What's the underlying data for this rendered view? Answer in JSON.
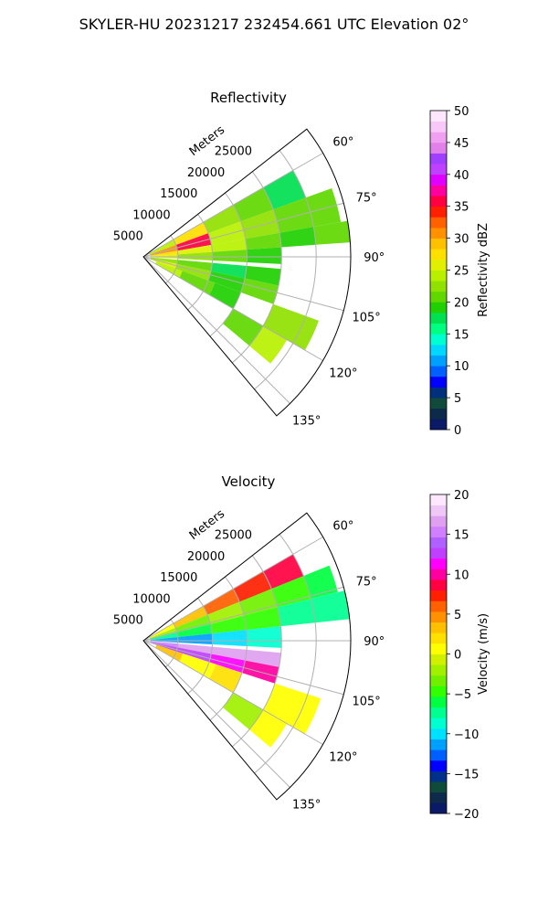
{
  "figure": {
    "title": "SKYLER-HU  20231217  232454.661 UTC Elevation 02°"
  },
  "chart_data": [
    {
      "type": "heatmap",
      "subtype": "polar-sector (radar PPI)",
      "title": "Reflectivity",
      "range_label": "Meters",
      "r_ticks": [
        5000,
        10000,
        15000,
        20000,
        25000
      ],
      "r_tick_labels": [
        "5000",
        "10000",
        "15000",
        "20000",
        "25000"
      ],
      "rlim": [
        0,
        30000
      ],
      "theta_ticks_deg": [
        60,
        75,
        90,
        105,
        120,
        135
      ],
      "theta_tick_labels": [
        "60°",
        "75°",
        "90°",
        "105°",
        "120°",
        "135°"
      ],
      "theta_range_deg": [
        52,
        140
      ],
      "grid": true,
      "colorbar": {
        "label": "Reflectivity dBZ",
        "range": [
          0,
          50
        ],
        "ticks": [
          0,
          5,
          10,
          15,
          20,
          25,
          30,
          35,
          40,
          45,
          50
        ],
        "tick_labels": [
          "0",
          "5",
          "10",
          "15",
          "20",
          "25",
          "30",
          "35",
          "40",
          "45",
          "50"
        ]
      },
      "cells": [
        {
          "az": [
            60,
            70
          ],
          "r": [
            1000,
            5000
          ],
          "v": 24
        },
        {
          "az": [
            60,
            70
          ],
          "r": [
            5000,
            10000
          ],
          "v": 28
        },
        {
          "az": [
            60,
            70
          ],
          "r": [
            10000,
            15000
          ],
          "v": 22
        },
        {
          "az": [
            60,
            70
          ],
          "r": [
            15000,
            20000
          ],
          "v": 20
        },
        {
          "az": [
            60,
            70
          ],
          "r": [
            20000,
            25000
          ],
          "v": 18
        },
        {
          "az": [
            70,
            80
          ],
          "r": [
            1000,
            5000
          ],
          "v": 30
        },
        {
          "az": [
            70,
            80
          ],
          "r": [
            5000,
            10000
          ],
          "v": 35
        },
        {
          "az": [
            70,
            80
          ],
          "r": [
            10000,
            15000
          ],
          "v": 24
        },
        {
          "az": [
            70,
            80
          ],
          "r": [
            15000,
            20000
          ],
          "v": 22
        },
        {
          "az": [
            70,
            80
          ],
          "r": [
            20000,
            25000
          ],
          "v": 21
        },
        {
          "az": [
            70,
            80
          ],
          "r": [
            25000,
            29000
          ],
          "v": 20
        },
        {
          "az": [
            80,
            86
          ],
          "r": [
            1000,
            5000
          ],
          "v": 28
        },
        {
          "az": [
            80,
            86
          ],
          "r": [
            5000,
            10000
          ],
          "v": 26
        },
        {
          "az": [
            80,
            86
          ],
          "r": [
            10000,
            15000
          ],
          "v": 24
        },
        {
          "az": [
            80,
            86
          ],
          "r": [
            15000,
            20000
          ],
          "v": 21
        },
        {
          "az": [
            80,
            86
          ],
          "r": [
            20000,
            25000
          ],
          "v": 19
        },
        {
          "az": [
            80,
            86
          ],
          "r": [
            25000,
            30000
          ],
          "v": 20
        },
        {
          "az": [
            86,
            93
          ],
          "r": [
            1000,
            5000
          ],
          "v": 25
        },
        {
          "az": [
            86,
            93
          ],
          "r": [
            5000,
            10000
          ],
          "v": 22
        },
        {
          "az": [
            86,
            93
          ],
          "r": [
            10000,
            15000
          ],
          "v": 20
        },
        {
          "az": [
            86,
            93
          ],
          "r": [
            15000,
            20000
          ],
          "v": 19
        },
        {
          "az": [
            95,
            102
          ],
          "r": [
            1000,
            5000
          ],
          "v": 23
        },
        {
          "az": [
            95,
            102
          ],
          "r": [
            5000,
            10000
          ],
          "v": 20
        },
        {
          "az": [
            95,
            102
          ],
          "r": [
            10000,
            15000
          ],
          "v": 18
        },
        {
          "az": [
            95,
            102
          ],
          "r": [
            15000,
            20000
          ],
          "v": 19
        },
        {
          "az": [
            102,
            110
          ],
          "r": [
            1000,
            5000
          ],
          "v": 26
        },
        {
          "az": [
            102,
            110
          ],
          "r": [
            5000,
            10000
          ],
          "v": 22
        },
        {
          "az": [
            102,
            110
          ],
          "r": [
            10000,
            15000
          ],
          "v": 19
        },
        {
          "az": [
            102,
            110
          ],
          "r": [
            15000,
            20000
          ],
          "v": 21
        },
        {
          "az": [
            110,
            120
          ],
          "r": [
            2000,
            6000
          ],
          "v": 24
        },
        {
          "az": [
            110,
            120
          ],
          "r": [
            6000,
            11000
          ],
          "v": 20
        },
        {
          "az": [
            110,
            120
          ],
          "r": [
            11000,
            15000
          ],
          "v": 19
        },
        {
          "az": [
            110,
            120
          ],
          "r": [
            20000,
            27000
          ],
          "v": 22
        },
        {
          "az": [
            120,
            130
          ],
          "r": [
            15000,
            20000
          ],
          "v": 20
        },
        {
          "az": [
            120,
            130
          ],
          "r": [
            20000,
            24000
          ],
          "v": 24
        }
      ]
    },
    {
      "type": "heatmap",
      "subtype": "polar-sector (radar PPI)",
      "title": "Velocity",
      "range_label": "Meters",
      "r_ticks": [
        5000,
        10000,
        15000,
        20000,
        25000
      ],
      "r_tick_labels": [
        "5000",
        "10000",
        "15000",
        "20000",
        "25000"
      ],
      "rlim": [
        0,
        30000
      ],
      "theta_ticks_deg": [
        60,
        75,
        90,
        105,
        120,
        135
      ],
      "theta_tick_labels": [
        "60°",
        "75°",
        "90°",
        "105°",
        "120°",
        "135°"
      ],
      "theta_range_deg": [
        52,
        140
      ],
      "grid": true,
      "colorbar": {
        "label": "Velocity (m/s)",
        "range": [
          -20,
          20
        ],
        "ticks": [
          -20,
          -15,
          -10,
          -5,
          0,
          5,
          10,
          15,
          20
        ],
        "tick_labels": [
          "−20",
          "−15",
          "−10",
          "−5",
          "0",
          "5",
          "10",
          "15",
          "20"
        ]
      },
      "cells": [
        {
          "az": [
            60,
            68
          ],
          "r": [
            1000,
            5000
          ],
          "v": 0
        },
        {
          "az": [
            60,
            68
          ],
          "r": [
            5000,
            10000
          ],
          "v": 3
        },
        {
          "az": [
            60,
            68
          ],
          "r": [
            10000,
            15000
          ],
          "v": 6
        },
        {
          "az": [
            60,
            68
          ],
          "r": [
            15000,
            20000
          ],
          "v": 7
        },
        {
          "az": [
            60,
            68
          ],
          "r": [
            20000,
            25000
          ],
          "v": 8
        },
        {
          "az": [
            68,
            76
          ],
          "r": [
            1000,
            5000
          ],
          "v": -2
        },
        {
          "az": [
            68,
            76
          ],
          "r": [
            5000,
            10000
          ],
          "v": -3
        },
        {
          "az": [
            68,
            76
          ],
          "r": [
            10000,
            15000
          ],
          "v": -2
        },
        {
          "az": [
            68,
            76
          ],
          "r": [
            15000,
            20000
          ],
          "v": -3
        },
        {
          "az": [
            68,
            76
          ],
          "r": [
            20000,
            25000
          ],
          "v": -5
        },
        {
          "az": [
            68,
            76
          ],
          "r": [
            25000,
            29000
          ],
          "v": -6
        },
        {
          "az": [
            76,
            84
          ],
          "r": [
            1000,
            5000
          ],
          "v": -7
        },
        {
          "az": [
            76,
            84
          ],
          "r": [
            5000,
            10000
          ],
          "v": -6
        },
        {
          "az": [
            76,
            84
          ],
          "r": [
            10000,
            15000
          ],
          "v": -5
        },
        {
          "az": [
            76,
            84
          ],
          "r": [
            15000,
            20000
          ],
          "v": -5
        },
        {
          "az": [
            76,
            84
          ],
          "r": [
            20000,
            25000
          ],
          "v": -7
        },
        {
          "az": [
            76,
            84
          ],
          "r": [
            25000,
            30000
          ],
          "v": -8
        },
        {
          "az": [
            84,
            93
          ],
          "r": [
            1000,
            5000
          ],
          "v": -12
        },
        {
          "az": [
            84,
            93
          ],
          "r": [
            5000,
            10000
          ],
          "v": -11
        },
        {
          "az": [
            84,
            93
          ],
          "r": [
            10000,
            15000
          ],
          "v": -10
        },
        {
          "az": [
            84,
            93
          ],
          "r": [
            15000,
            20000
          ],
          "v": -9
        },
        {
          "az": [
            95,
            101
          ],
          "r": [
            1000,
            5000
          ],
          "v": 15
        },
        {
          "az": [
            95,
            101
          ],
          "r": [
            5000,
            10000
          ],
          "v": 16
        },
        {
          "az": [
            95,
            101
          ],
          "r": [
            10000,
            15000
          ],
          "v": 17
        },
        {
          "az": [
            95,
            101
          ],
          "r": [
            15000,
            20000
          ],
          "v": 16
        },
        {
          "az": [
            101,
            108
          ],
          "r": [
            1000,
            5000
          ],
          "v": 13
        },
        {
          "az": [
            101,
            108
          ],
          "r": [
            5000,
            10000
          ],
          "v": 12
        },
        {
          "az": [
            101,
            108
          ],
          "r": [
            10000,
            15000
          ],
          "v": 11
        },
        {
          "az": [
            101,
            108
          ],
          "r": [
            15000,
            20000
          ],
          "v": 10
        },
        {
          "az": [
            108,
            120
          ],
          "r": [
            2000,
            6000
          ],
          "v": 3
        },
        {
          "az": [
            108,
            120
          ],
          "r": [
            6000,
            11000
          ],
          "v": 1
        },
        {
          "az": [
            108,
            120
          ],
          "r": [
            11000,
            15000
          ],
          "v": 2
        },
        {
          "az": [
            108,
            120
          ],
          "r": [
            20000,
            27000
          ],
          "v": 1
        },
        {
          "az": [
            120,
            130
          ],
          "r": [
            15000,
            20000
          ],
          "v": -2
        },
        {
          "az": [
            120,
            130
          ],
          "r": [
            20000,
            24000
          ],
          "v": 0
        }
      ]
    }
  ]
}
